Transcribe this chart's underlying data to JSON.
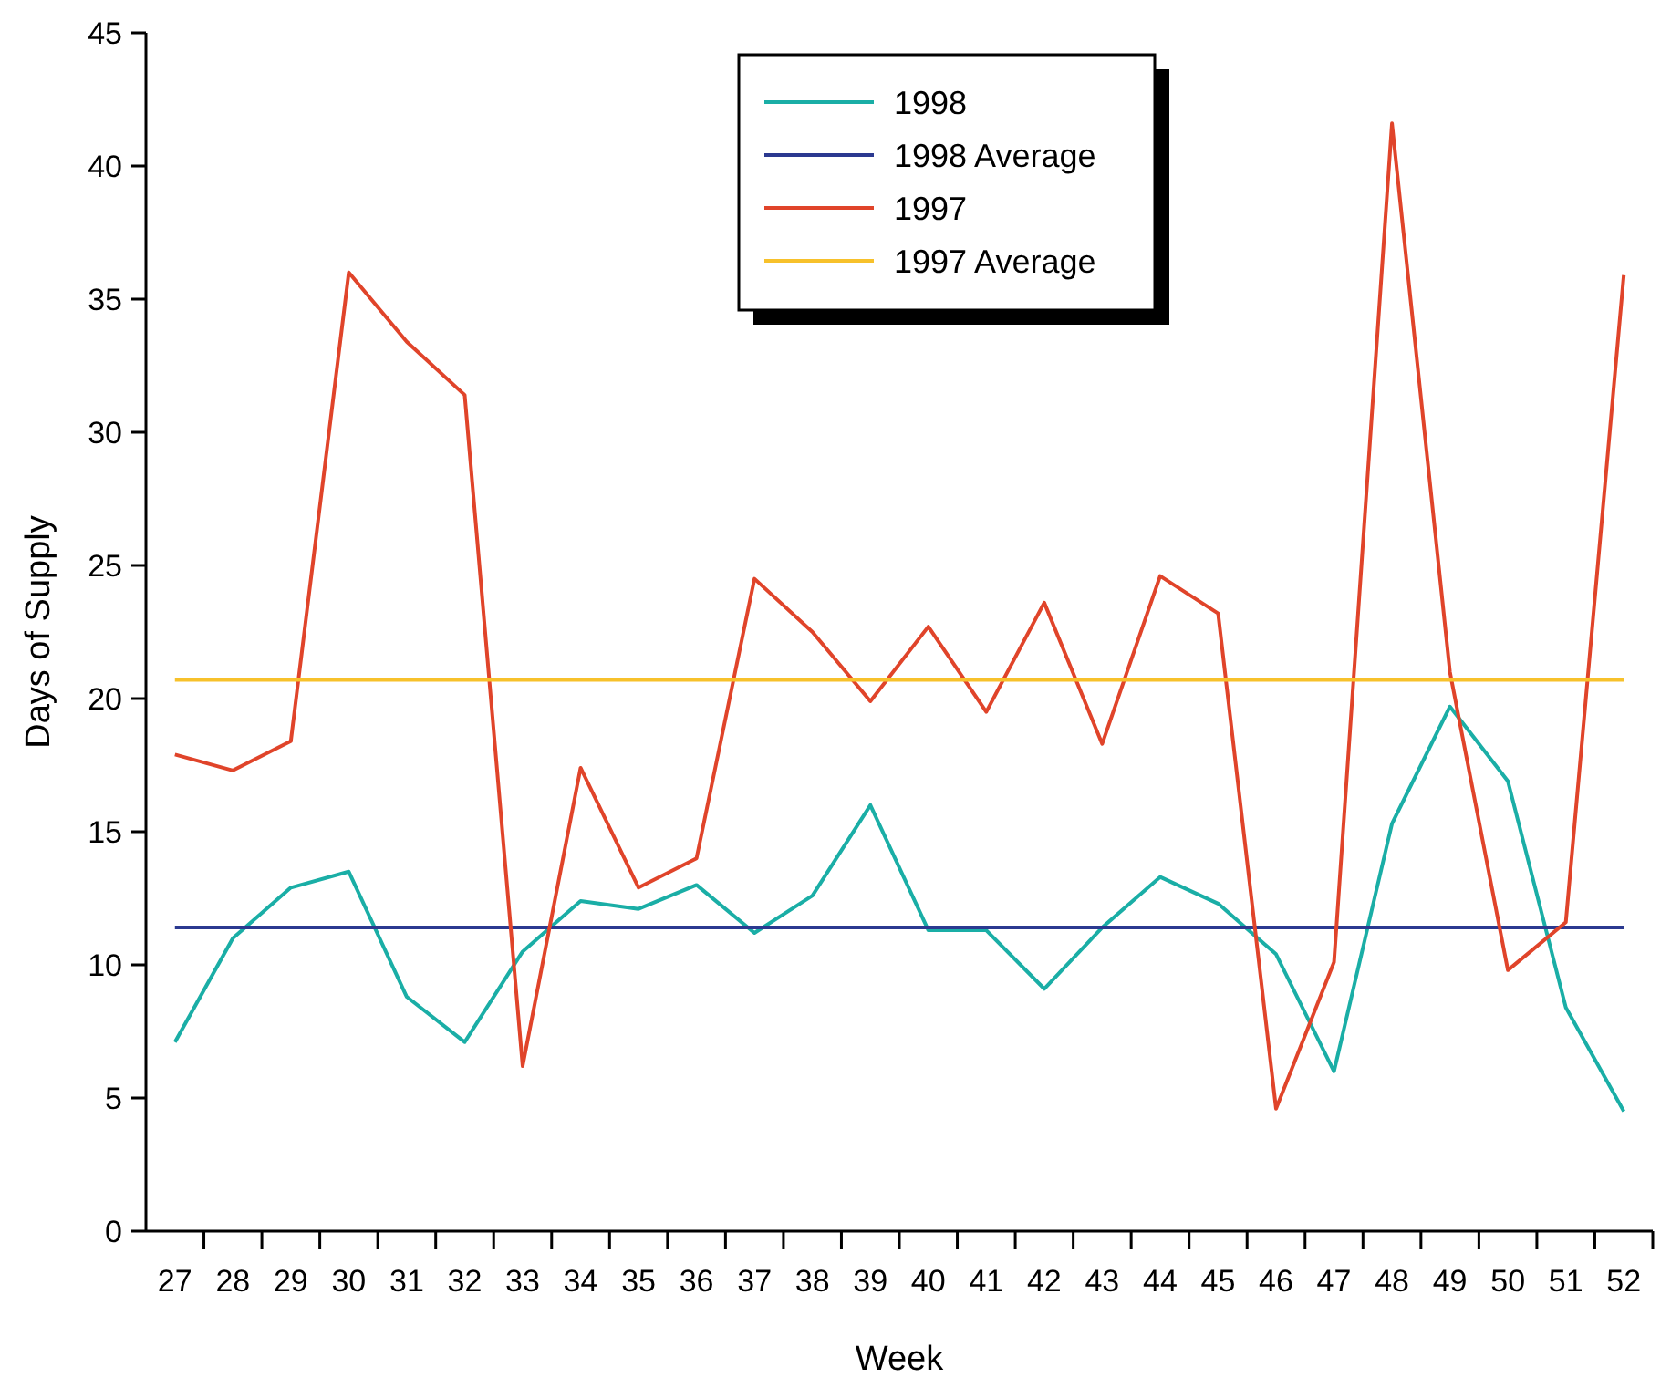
{
  "chart_data": {
    "type": "line",
    "xlabel": "Week",
    "ylabel": "Days of Supply",
    "categories": [
      "27",
      "28",
      "29",
      "30",
      "31",
      "32",
      "33",
      "34",
      "35",
      "36",
      "37",
      "38",
      "39",
      "40",
      "41",
      "42",
      "43",
      "44",
      "45",
      "46",
      "47",
      "48",
      "49",
      "50",
      "51",
      "52"
    ],
    "series": [
      {
        "name": "1998",
        "color": "#1aaea6",
        "values": [
          7.1,
          11.0,
          12.9,
          13.5,
          8.8,
          7.1,
          10.5,
          12.4,
          12.1,
          13.0,
          11.2,
          12.6,
          16.0,
          11.3,
          11.3,
          9.1,
          11.4,
          13.3,
          12.3,
          10.4,
          6.0,
          15.3,
          19.7,
          16.9,
          8.4,
          4.5
        ]
      },
      {
        "name": "1998 Average",
        "color": "#2b3990",
        "values": [
          11.4,
          11.4,
          11.4,
          11.4,
          11.4,
          11.4,
          11.4,
          11.4,
          11.4,
          11.4,
          11.4,
          11.4,
          11.4,
          11.4,
          11.4,
          11.4,
          11.4,
          11.4,
          11.4,
          11.4,
          11.4,
          11.4,
          11.4,
          11.4,
          11.4,
          11.4
        ]
      },
      {
        "name": "1997",
        "color": "#e0442a",
        "values": [
          17.9,
          17.3,
          18.4,
          36.0,
          33.4,
          31.4,
          6.2,
          17.4,
          12.9,
          14.0,
          24.5,
          22.5,
          19.9,
          22.7,
          19.5,
          23.6,
          18.3,
          24.6,
          23.2,
          4.6,
          10.1,
          41.6,
          21.0,
          9.8,
          11.6,
          35.9
        ]
      },
      {
        "name": "1997 Average",
        "color": "#f7c12b",
        "values": [
          20.7,
          20.7,
          20.7,
          20.7,
          20.7,
          20.7,
          20.7,
          20.7,
          20.7,
          20.7,
          20.7,
          20.7,
          20.7,
          20.7,
          20.7,
          20.7,
          20.7,
          20.7,
          20.7,
          20.7,
          20.7,
          20.7,
          20.7,
          20.7,
          20.7,
          20.7
        ]
      }
    ],
    "ylim": [
      0,
      45
    ],
    "yticks": [
      0,
      5,
      10,
      15,
      20,
      25,
      30,
      35,
      40,
      45
    ],
    "grid": false,
    "legend": "top",
    "marker": "none",
    "line_style": "solid"
  }
}
